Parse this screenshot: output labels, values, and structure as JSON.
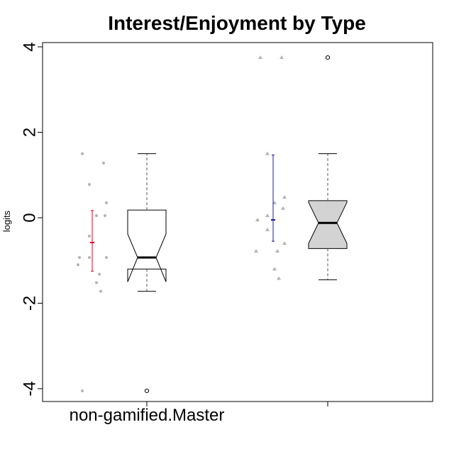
{
  "chart_data": {
    "type": "box",
    "title": "Interest/Enjoyment by Type",
    "xlabel": "",
    "ylabel": "logits",
    "ylim": [
      -4.3,
      4.1
    ],
    "yticks": [
      -4,
      -2,
      0,
      2,
      4
    ],
    "ytick_labels": [
      "-4",
      "-2",
      "0",
      "2",
      "4"
    ],
    "grid": false,
    "categories": [
      "non-gamified.Master",
      ""
    ],
    "groups": [
      {
        "label": "non-gamified.Master",
        "point_color": "#b3b3b3",
        "point_shape": "circle",
        "points": [
          [
            1.5,
            -0.93
          ],
          [
            1.5,
            -0.93
          ],
          [
            1.5,
            -0.93
          ],
          [
            1.5,
            -0.93
          ],
          [
            0.78,
            -0.93
          ],
          [
            -0.93,
            -0.93
          ],
          [
            1.3,
            -1.1
          ],
          [
            1.5,
            -1.3
          ],
          [
            -1.1,
            -1.5
          ],
          [
            0.05,
            -1.7
          ],
          [
            -0.43,
            -0.43
          ],
          [
            -1.32,
            -1.32
          ],
          [
            0.05,
            0.05
          ],
          [
            0.35,
            0.35
          ],
          [
            -4.05,
            -4.05
          ]
        ],
        "jitter_values": [
          1.5,
          1.28,
          0.78,
          0.35,
          0.05,
          0.05,
          -0.43,
          -0.93,
          -0.93,
          -0.93,
          -1.1,
          -1.32,
          -1.52,
          -1.72,
          -4.05
        ],
        "mean": -0.58,
        "ci": [
          -1.25,
          0.17
        ],
        "ci_color": "#e8001c",
        "box": {
          "whisker_low": -1.72,
          "q1": -1.2,
          "median": -0.93,
          "q3": 0.18,
          "whisker_high": 1.5,
          "notch_low": -1.5,
          "notch_high": -0.38,
          "fill": "#ffffff",
          "outliers": [
            -4.05
          ]
        }
      },
      {
        "label": "",
        "point_color": "#b3b3b3",
        "point_shape": "triangle",
        "jitter_values": [
          3.75,
          3.75,
          1.5,
          0.48,
          0.35,
          0.22,
          0.05,
          -0.05,
          -0.28,
          -0.6,
          -0.78,
          -0.78,
          -1.2,
          -1.42
        ],
        "mean": -0.05,
        "ci": [
          -0.55,
          1.47
        ],
        "ci_color": "#1a1aa6",
        "box": {
          "whisker_low": -1.45,
          "q1": -0.72,
          "median": -0.12,
          "q3": 0.4,
          "whisker_high": 1.5,
          "notch_low": -0.6,
          "notch_high": 0.36,
          "fill": "#d3d3d3",
          "outliers": [
            3.75
          ]
        }
      }
    ]
  }
}
